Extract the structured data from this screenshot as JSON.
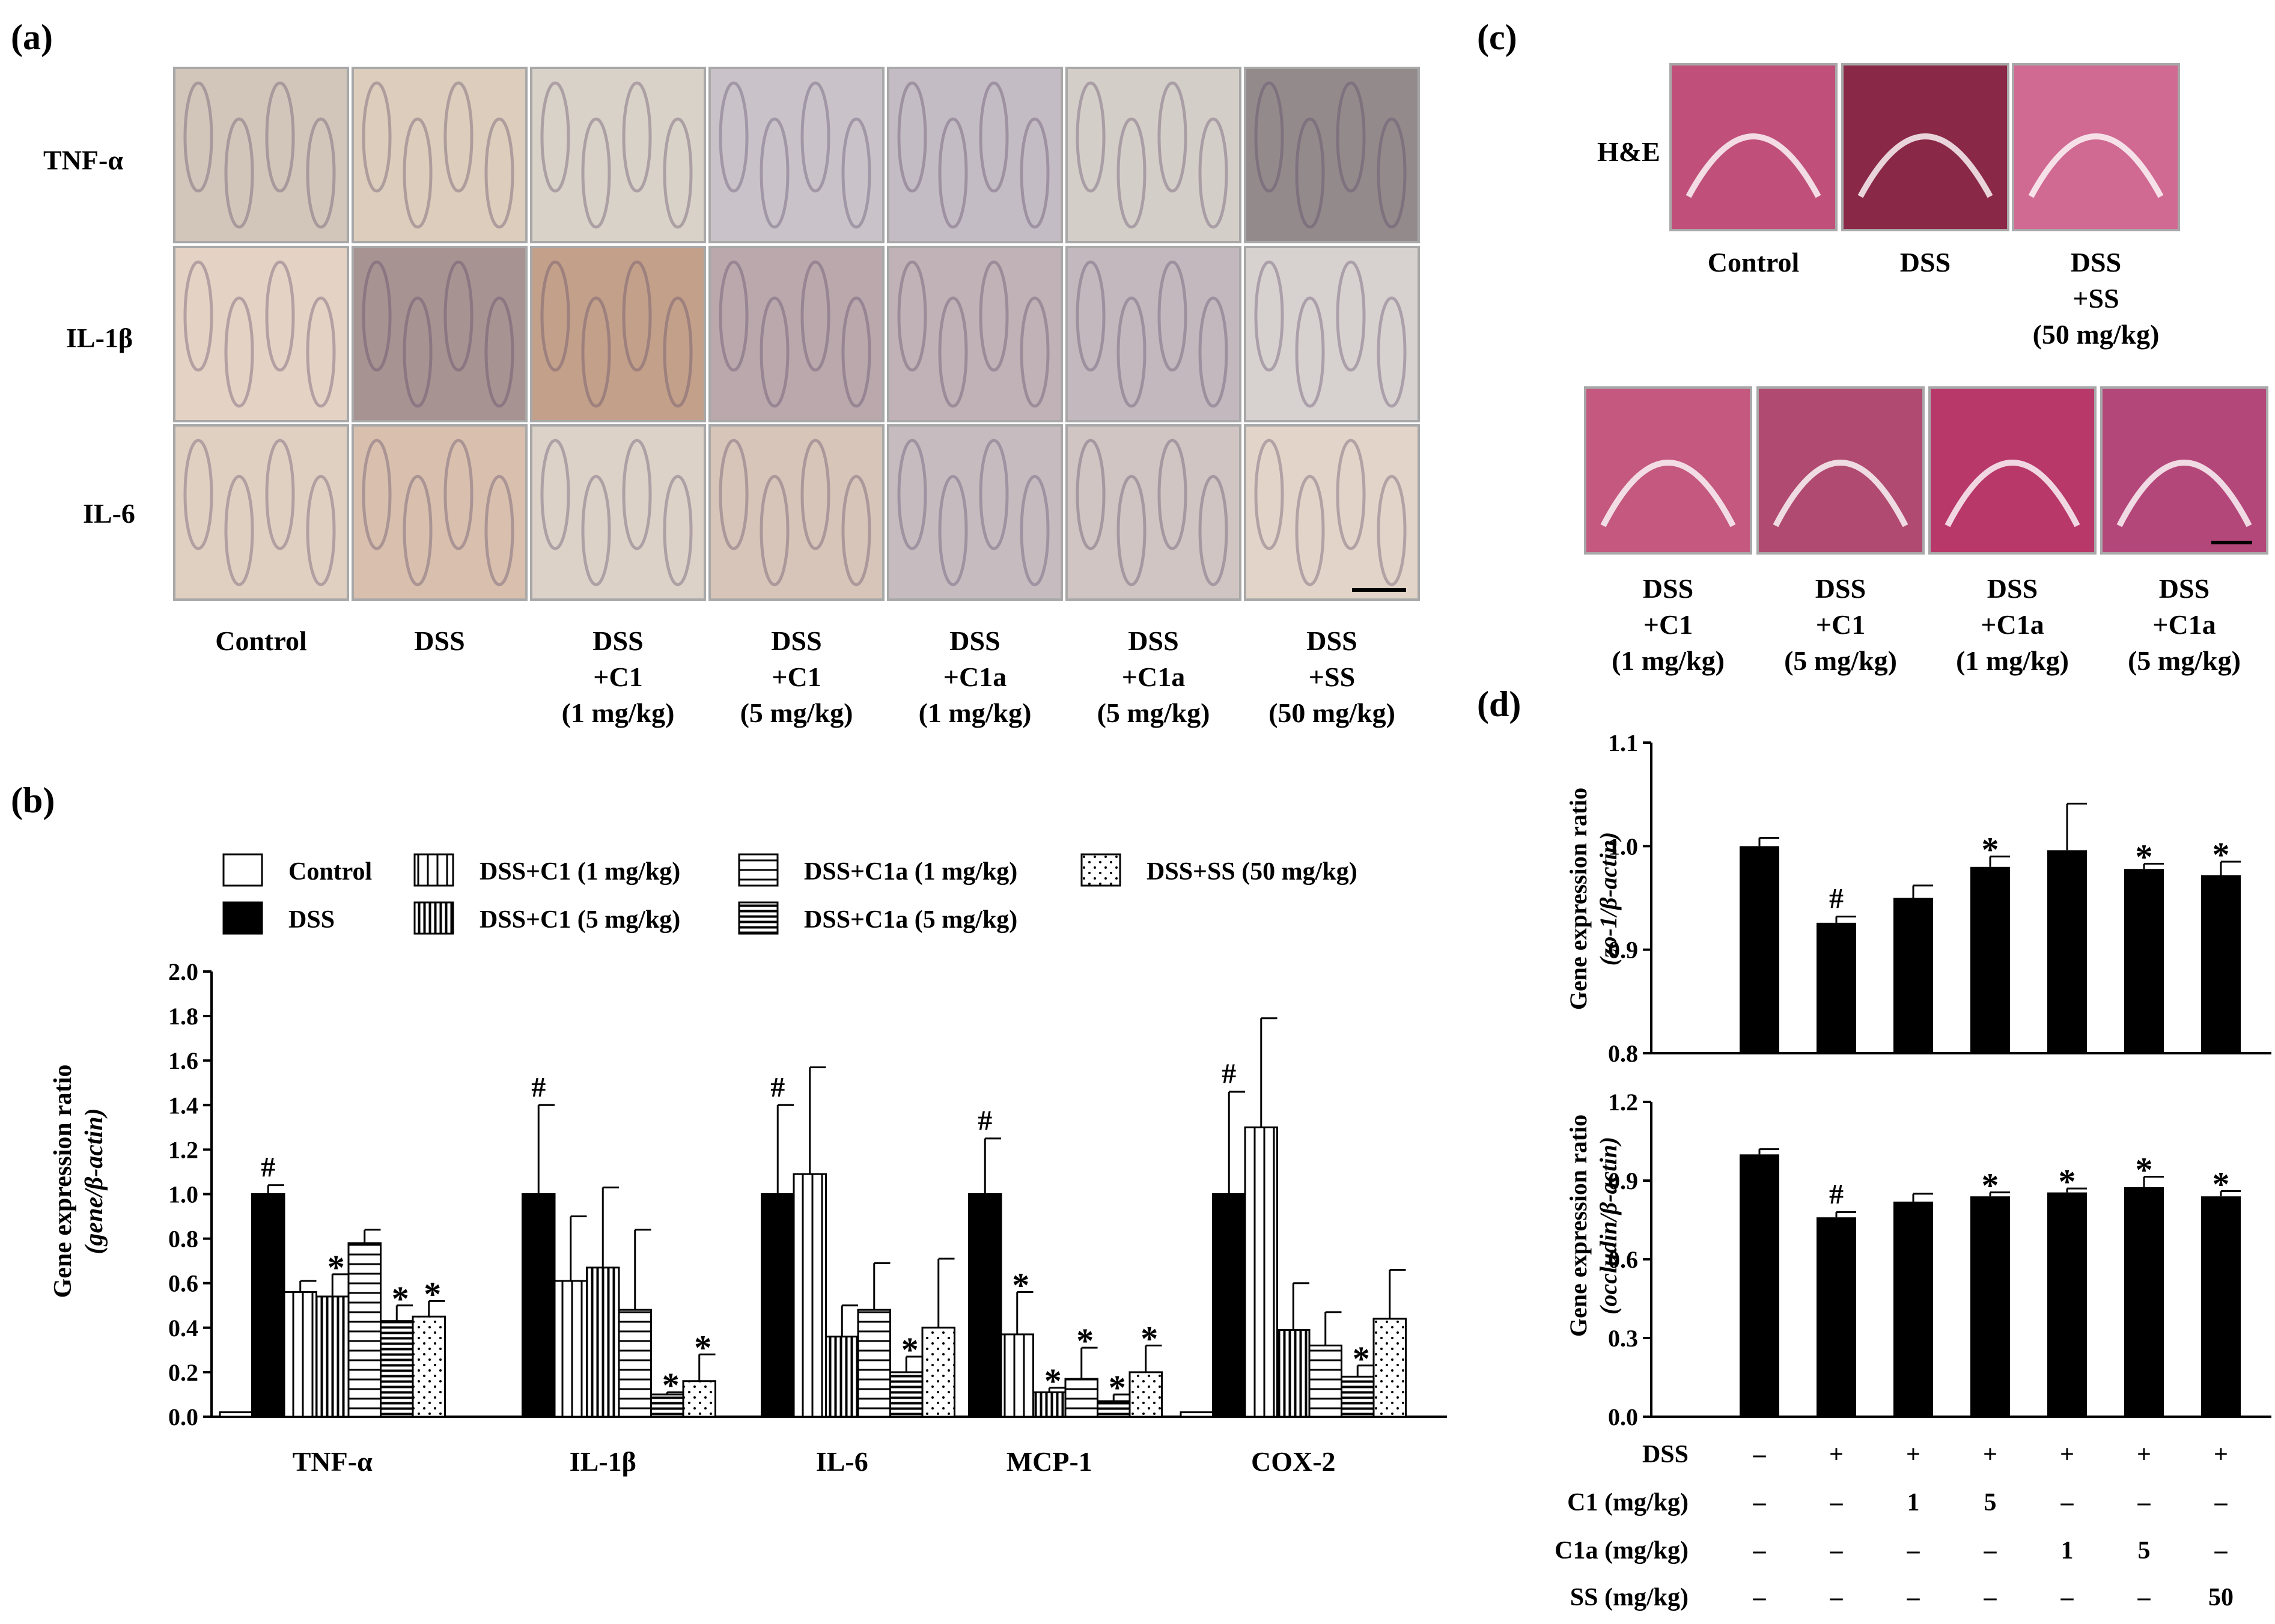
{
  "panel_a": {
    "label": "(a)",
    "row_labels": [
      "TNF-α",
      "IL-1β",
      "IL-6"
    ],
    "columns": [
      [
        "Control"
      ],
      [
        "DSS"
      ],
      [
        "DSS",
        "+C1",
        "(1 mg/kg)"
      ],
      [
        "DSS",
        "+C1",
        "(5 mg/kg)"
      ],
      [
        "DSS",
        "+C1a",
        "(1 mg/kg)"
      ],
      [
        "DSS",
        "+C1a",
        "(5 mg/kg)"
      ],
      [
        "DSS",
        "+SS",
        "(50 mg/kg)"
      ]
    ],
    "tile_tints": [
      [
        "#d2c6ba",
        "#dccdbc",
        "#d9d2c8",
        "#c9c3c9",
        "#c4bcc4",
        "#d4cec8",
        "#938a8c"
      ],
      [
        "#e4d2c4",
        "#a79392",
        "#c3a08a",
        "#baa8ad",
        "#c0b2b6",
        "#c3b8be",
        "#d7d2d0"
      ],
      [
        "#e0d0c2",
        "#d8bfae",
        "#dcd2c8",
        "#d6c5b8",
        "#c6bcc0",
        "#d0c5c2",
        "#e2d4c8"
      ]
    ]
  },
  "panel_b": {
    "label": "(b)",
    "legend": [
      "Control",
      "DSS",
      "DSS+C1 (1 mg/kg)",
      "DSS+C1 (5 mg/kg)",
      "DSS+C1a (1 mg/kg)",
      "DSS+C1a (5 mg/kg)",
      "DSS+SS (50 mg/kg)"
    ],
    "ylabel_line1": "Gene expression ratio",
    "ylabel_line2": "(gene/β-actin)"
  },
  "panel_c": {
    "label": "(c)",
    "row_label": "H&E",
    "top_captions": [
      [
        "Control"
      ],
      [
        "DSS"
      ],
      [
        "DSS",
        "+SS",
        "(50 mg/kg)"
      ]
    ],
    "bottom_captions": [
      [
        "DSS",
        "+C1",
        "(1 mg/kg)"
      ],
      [
        "DSS",
        "+C1",
        "(5 mg/kg)"
      ],
      [
        "DSS",
        "+C1a",
        "(1 mg/kg)"
      ],
      [
        "DSS",
        "+C1a",
        "(5 mg/kg)"
      ]
    ],
    "tile_tints_top": [
      "#c0507a",
      "#8a2848",
      "#d06a92"
    ],
    "tile_tints_bottom": [
      "#c4587e",
      "#b04a70",
      "#b8386a",
      "#b4477a"
    ]
  },
  "panel_d": {
    "label": "(d)",
    "top_ylabel_line1": "Gene expression ratio",
    "top_ylabel_line2": "(zo-1/β-actin)",
    "bottom_ylabel_line1": "Gene expression ratio",
    "bottom_ylabel_line2": "(occludin/β-actin)",
    "treatment_rows": [
      {
        "label": "DSS",
        "values": [
          "–",
          "+",
          "+",
          "+",
          "+",
          "+",
          "+"
        ]
      },
      {
        "label": "C1 (mg/kg)",
        "values": [
          "–",
          "–",
          "1",
          "5",
          "–",
          "–",
          "–"
        ]
      },
      {
        "label": "C1a (mg/kg)",
        "values": [
          "–",
          "–",
          "–",
          "–",
          "1",
          "5",
          "–"
        ]
      },
      {
        "label": "SS (mg/kg)",
        "values": [
          "–",
          "–",
          "–",
          "–",
          "–",
          "–",
          "50"
        ]
      }
    ]
  },
  "chart_data": [
    {
      "type": "bar",
      "categories": [
        "TNF-α",
        "IL-1β",
        "IL-6",
        "MCP-1",
        "COX-2"
      ],
      "ylabel": "Gene expression ratio (gene/β-actin)",
      "ylim": [
        0.0,
        2.0
      ],
      "yticks": [
        "0.0",
        "0.2",
        "0.4",
        "0.6",
        "0.8",
        "1.0",
        "1.2",
        "1.4",
        "1.6",
        "1.8",
        "2.0"
      ],
      "series": [
        {
          "name": "Control",
          "values": [
            0.02,
            0.0,
            0.0,
            0.0,
            0.02
          ],
          "errors": [
            0,
            0,
            0,
            0,
            0
          ],
          "marks": [
            "",
            "",
            "",
            "",
            ""
          ]
        },
        {
          "name": "DSS",
          "values": [
            1.0,
            1.0,
            1.0,
            1.0,
            1.0
          ],
          "errors": [
            0.04,
            0.4,
            0.4,
            0.25,
            0.46
          ],
          "marks": [
            "#",
            "#",
            "#",
            "#",
            "#"
          ]
        },
        {
          "name": "DSS+C1 (1 mg/kg)",
          "values": [
            0.56,
            0.61,
            1.09,
            0.37,
            1.3
          ],
          "errors": [
            0.05,
            0.29,
            0.48,
            0.19,
            0.49
          ],
          "marks": [
            "",
            "",
            "",
            "*",
            ""
          ]
        },
        {
          "name": "DSS+C1 (5 mg/kg)",
          "values": [
            0.54,
            0.67,
            0.36,
            0.11,
            0.39
          ],
          "errors": [
            0.1,
            0.36,
            0.14,
            0.02,
            0.21
          ],
          "marks": [
            "*",
            "",
            "",
            "*",
            ""
          ]
        },
        {
          "name": "DSS+C1a (1 mg/kg)",
          "values": [
            0.78,
            0.48,
            0.48,
            0.17,
            0.32
          ],
          "errors": [
            0.06,
            0.36,
            0.21,
            0.14,
            0.15
          ],
          "marks": [
            "",
            "",
            "",
            "*",
            ""
          ]
        },
        {
          "name": "DSS+C1a (5 mg/kg)",
          "values": [
            0.43,
            0.1,
            0.2,
            0.07,
            0.18
          ],
          "errors": [
            0.07,
            0.01,
            0.07,
            0.03,
            0.05
          ],
          "marks": [
            "*",
            "*",
            "*",
            "*",
            "*"
          ]
        },
        {
          "name": "DSS+SS (50 mg/kg)",
          "values": [
            0.45,
            0.16,
            0.4,
            0.2,
            0.44
          ],
          "errors": [
            0.07,
            0.12,
            0.31,
            0.12,
            0.22
          ],
          "marks": [
            "*",
            "*",
            "",
            "*",
            ""
          ]
        }
      ]
    },
    {
      "type": "bar",
      "categories": [
        "1",
        "2",
        "3",
        "4",
        "5",
        "6",
        "7"
      ],
      "ylabel": "Gene expression ratio (zo-1/β-actin)",
      "ylim": [
        0.8,
        1.1
      ],
      "yticks": [
        "0.8",
        "0.9",
        "1.0",
        "1.1"
      ],
      "values": [
        1.0,
        0.926,
        0.95,
        0.98,
        0.996,
        0.978,
        0.972
      ],
      "errors": [
        0.008,
        0.006,
        0.012,
        0.01,
        0.045,
        0.005,
        0.013
      ],
      "marks": [
        "",
        "#",
        "",
        "*",
        "",
        "*",
        "*"
      ]
    },
    {
      "type": "bar",
      "categories": [
        "1",
        "2",
        "3",
        "4",
        "5",
        "6",
        "7"
      ],
      "ylabel": "Gene expression ratio (occludin/β-actin)",
      "ylim": [
        0.0,
        1.2
      ],
      "yticks": [
        "0.0",
        "0.3",
        "0.6",
        "0.9",
        "1.2"
      ],
      "values": [
        1.0,
        0.76,
        0.82,
        0.84,
        0.855,
        0.875,
        0.84
      ],
      "errors": [
        0.02,
        0.02,
        0.03,
        0.015,
        0.015,
        0.04,
        0.02
      ],
      "marks": [
        "",
        "#",
        "",
        "*",
        "*",
        "*",
        "*"
      ]
    }
  ]
}
